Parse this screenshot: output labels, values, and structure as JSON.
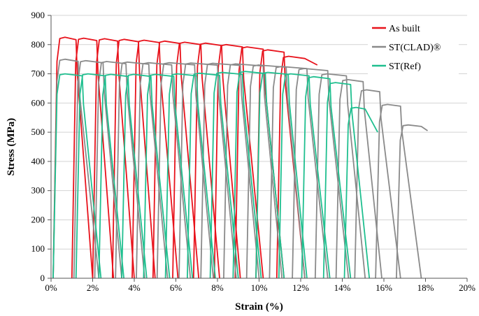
{
  "chart_data": {
    "type": "line",
    "title": "",
    "xlabel": "Strain (%)",
    "ylabel": "Stress (MPa)",
    "xlim": [
      0,
      20
    ],
    "ylim": [
      0,
      900
    ],
    "x_ticks": [
      0,
      2,
      4,
      6,
      8,
      10,
      12,
      14,
      16,
      18,
      20
    ],
    "x_tick_labels": [
      "0%",
      "2%",
      "4%",
      "6%",
      "8%",
      "10%",
      "12%",
      "14%",
      "16%",
      "18%",
      "20%"
    ],
    "y_ticks": [
      0,
      100,
      200,
      300,
      400,
      500,
      600,
      700,
      800,
      900
    ],
    "y_tick_labels": [
      "0",
      "100",
      "200",
      "300",
      "400",
      "500",
      "600",
      "700",
      "800",
      "900"
    ],
    "grid": "horizontal",
    "legend_position": "top-right",
    "series": [
      {
        "name": "As built",
        "color": "#e8121b",
        "cycles": [
          {
            "start": 0.1,
            "peak": 1.2,
            "end": 2.0,
            "stress": 825
          },
          {
            "start": 1.0,
            "peak": 2.2,
            "end": 3.0,
            "stress": 822
          },
          {
            "start": 2.0,
            "peak": 3.2,
            "end": 4.0,
            "stress": 820
          },
          {
            "start": 2.95,
            "peak": 4.2,
            "end": 5.0,
            "stress": 818
          },
          {
            "start": 3.9,
            "peak": 5.2,
            "end": 6.1,
            "stress": 815
          },
          {
            "start": 4.9,
            "peak": 6.2,
            "end": 7.1,
            "stress": 812
          },
          {
            "start": 5.85,
            "peak": 7.2,
            "end": 8.1,
            "stress": 808
          },
          {
            "start": 6.85,
            "peak": 8.2,
            "end": 9.1,
            "stress": 805
          },
          {
            "start": 7.85,
            "peak": 9.2,
            "end": 10.2,
            "stress": 800
          },
          {
            "start": 8.85,
            "peak": 10.2,
            "end": 11.2,
            "stress": 792
          },
          {
            "start": 9.85,
            "peak": 11.2,
            "end": 12.2,
            "stress": 782
          }
        ],
        "final": {
          "start": 10.85,
          "peak": 12.2,
          "end": 12.8,
          "stress": 760,
          "end_stress": 730
        }
      },
      {
        "name": "ST(CLAD)®",
        "color": "#8a8a8a",
        "cycles": [
          {
            "start": 0.1,
            "peak": 1.3,
            "end": 2.3,
            "stress": 750
          },
          {
            "start": 1.1,
            "peak": 2.5,
            "end": 3.4,
            "stress": 745
          },
          {
            "start": 2.1,
            "peak": 3.6,
            "end": 4.5,
            "stress": 742
          },
          {
            "start": 3.1,
            "peak": 4.7,
            "end": 5.6,
            "stress": 740
          },
          {
            "start": 4.1,
            "peak": 5.8,
            "end": 6.7,
            "stress": 738
          },
          {
            "start": 5.1,
            "peak": 6.9,
            "end": 7.8,
            "stress": 738
          },
          {
            "start": 6.15,
            "peak": 8.0,
            "end": 8.9,
            "stress": 737
          },
          {
            "start": 7.2,
            "peak": 9.1,
            "end": 10.0,
            "stress": 736
          },
          {
            "start": 8.3,
            "peak": 10.2,
            "end": 11.1,
            "stress": 734
          },
          {
            "start": 9.4,
            "peak": 11.3,
            "end": 12.2,
            "stress": 730
          },
          {
            "start": 10.5,
            "peak": 12.3,
            "end": 13.3,
            "stress": 725
          },
          {
            "start": 11.6,
            "peak": 13.3,
            "end": 14.3,
            "stress": 718
          },
          {
            "start": 12.7,
            "peak": 14.2,
            "end": 15.1,
            "stress": 700
          },
          {
            "start": 13.7,
            "peak": 15.0,
            "end": 15.9,
            "stress": 680
          },
          {
            "start": 14.6,
            "peak": 15.8,
            "end": 16.8,
            "stress": 645
          },
          {
            "start": 15.6,
            "peak": 16.8,
            "end": 17.8,
            "stress": 595
          }
        ],
        "final": {
          "start": 16.6,
          "peak": 17.8,
          "end": 18.1,
          "stress": 525,
          "end_stress": 505
        }
      },
      {
        "name": "ST(Ref)",
        "color": "#1fbf8f",
        "cycles": [
          {
            "start": 0.1,
            "peak": 1.5,
            "end": 2.4,
            "stress": 700
          },
          {
            "start": 1.2,
            "peak": 2.6,
            "end": 3.5,
            "stress": 700
          },
          {
            "start": 2.3,
            "peak": 3.7,
            "end": 4.6,
            "stress": 698
          },
          {
            "start": 3.4,
            "peak": 4.8,
            "end": 5.7,
            "stress": 698
          },
          {
            "start": 4.45,
            "peak": 5.9,
            "end": 6.8,
            "stress": 698
          },
          {
            "start": 5.5,
            "peak": 7.0,
            "end": 7.9,
            "stress": 700
          },
          {
            "start": 6.55,
            "peak": 8.1,
            "end": 9.0,
            "stress": 702
          },
          {
            "start": 7.65,
            "peak": 9.2,
            "end": 10.1,
            "stress": 705
          },
          {
            "start": 8.75,
            "peak": 10.3,
            "end": 11.2,
            "stress": 708
          },
          {
            "start": 9.85,
            "peak": 11.4,
            "end": 12.3,
            "stress": 705
          },
          {
            "start": 10.95,
            "peak": 12.4,
            "end": 13.4,
            "stress": 700
          },
          {
            "start": 12.05,
            "peak": 13.4,
            "end": 14.4,
            "stress": 690
          },
          {
            "start": 13.1,
            "peak": 14.4,
            "end": 15.3,
            "stress": 670
          }
        ],
        "final": {
          "start": 14.1,
          "peak": 15.1,
          "end": 15.7,
          "stress": 585,
          "end_stress": 500
        }
      }
    ]
  }
}
